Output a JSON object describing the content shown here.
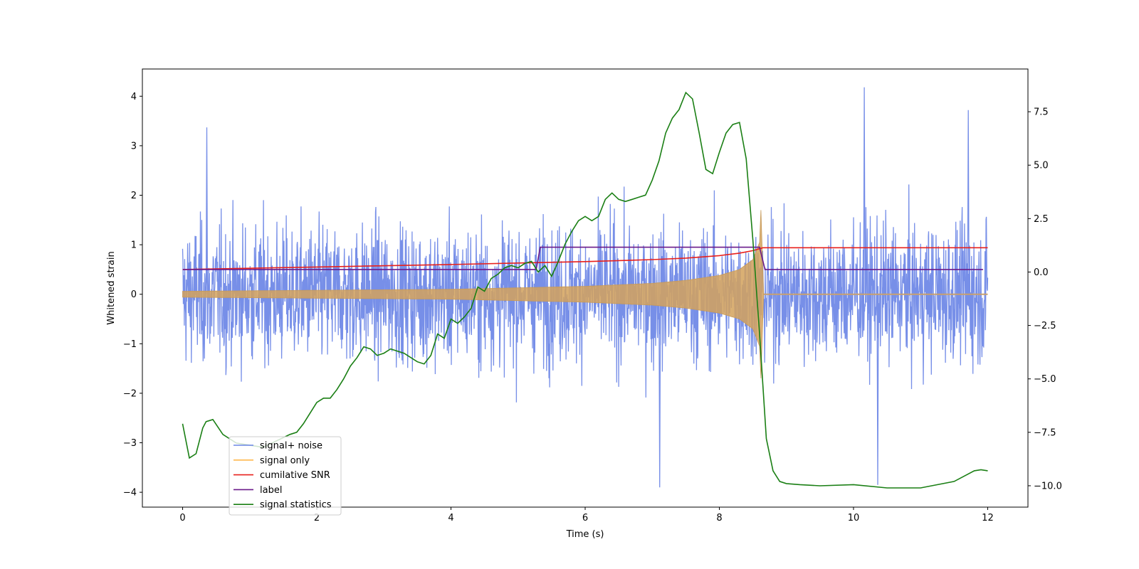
{
  "chart_data": {
    "type": "line",
    "xlabel": "Time (s)",
    "ylabel": "Whitened strain",
    "xlim": [
      -0.6,
      12.6
    ],
    "ylim": [
      -4.3,
      4.55
    ],
    "y2lim": [
      -11.0,
      9.5
    ],
    "xticks": [
      0,
      2,
      4,
      6,
      8,
      10,
      12
    ],
    "yticks": [
      -4,
      -3,
      -2,
      -1,
      0,
      1,
      2,
      3,
      4
    ],
    "y2ticks": [
      -10.0,
      -7.5,
      -5.0,
      -2.5,
      0.0,
      2.5,
      5.0,
      7.5
    ],
    "legend_position": "lower-left",
    "series": [
      {
        "name": "signal+ noise",
        "color": "#6b86e6",
        "axis": "left",
        "description": "noisy whitened strain, roughly ±2 with spikes to about ±3.5, sampled 0–12 s",
        "x_range": [
          0,
          12
        ],
        "peaks": [
          {
            "x": 0.35,
            "y": 3.37
          },
          {
            "x": 10.15,
            "y": 4.18
          },
          {
            "x": 11.7,
            "y": 3.72
          },
          {
            "x": 7.1,
            "y": -3.9
          },
          {
            "x": 10.35,
            "y": -3.85
          }
        ]
      },
      {
        "name": "signal only",
        "color": "#ffb84d",
        "axis": "left",
        "description": "chirp with amplitude growing from ~0.06 at t=0 to ~1.7 at t≈8.62 s, ~0 afterwards",
        "envelope": {
          "x": [
            0,
            2,
            4,
            6,
            7,
            7.5,
            8,
            8.3,
            8.5,
            8.6,
            8.62,
            8.66,
            12
          ],
          "y": [
            0.06,
            0.08,
            0.1,
            0.16,
            0.22,
            0.28,
            0.38,
            0.5,
            0.7,
            1.05,
            1.7,
            0.0,
            0.0
          ]
        }
      },
      {
        "name": "cumilative SNR",
        "color": "#e8201c",
        "axis": "left",
        "x": [
          0,
          2,
          4,
          5,
          6,
          7,
          7.5,
          8,
          8.3,
          8.5,
          8.6,
          8.65,
          12
        ],
        "y": [
          0.5,
          0.55,
          0.6,
          0.63,
          0.66,
          0.7,
          0.73,
          0.78,
          0.83,
          0.88,
          0.92,
          0.94,
          0.94
        ]
      },
      {
        "name": "label",
        "color": "#6a1a8a",
        "axis": "left",
        "x": [
          0,
          5.27,
          5.33,
          8.6,
          8.68,
          11.93
        ],
        "y": [
          0.5,
          0.5,
          0.95,
          0.95,
          0.5,
          0.5
        ]
      },
      {
        "name": "signal statistics",
        "color": "#1a7f14",
        "axis": "right",
        "x": [
          0,
          0.1,
          0.2,
          0.3,
          0.35,
          0.45,
          0.6,
          0.8,
          1.0,
          1.2,
          1.4,
          1.6,
          1.7,
          1.8,
          1.9,
          2.0,
          2.1,
          2.2,
          2.3,
          2.4,
          2.5,
          2.6,
          2.7,
          2.8,
          2.9,
          3.0,
          3.1,
          3.2,
          3.3,
          3.4,
          3.5,
          3.6,
          3.7,
          3.8,
          3.9,
          4.0,
          4.1,
          4.2,
          4.3,
          4.4,
          4.5,
          4.6,
          4.7,
          4.8,
          4.9,
          5.0,
          5.1,
          5.2,
          5.3,
          5.4,
          5.5,
          5.6,
          5.7,
          5.8,
          5.9,
          6.0,
          6.1,
          6.2,
          6.3,
          6.4,
          6.5,
          6.6,
          6.7,
          6.8,
          6.9,
          7.0,
          7.1,
          7.2,
          7.3,
          7.4,
          7.5,
          7.6,
          7.7,
          7.8,
          7.9,
          8.0,
          8.1,
          8.2,
          8.3,
          8.4,
          8.5,
          8.6,
          8.7,
          8.8,
          8.9,
          9.0,
          9.2,
          9.5,
          10.0,
          10.5,
          11.0,
          11.5,
          11.8,
          11.9,
          12.0
        ],
        "y": [
          -7.1,
          -8.7,
          -8.5,
          -7.3,
          -7.0,
          -6.9,
          -7.6,
          -8.0,
          -8.1,
          -8.2,
          -7.9,
          -7.6,
          -7.5,
          -7.1,
          -6.6,
          -6.1,
          -5.9,
          -5.9,
          -5.5,
          -5.0,
          -4.4,
          -4.0,
          -3.5,
          -3.6,
          -3.9,
          -3.8,
          -3.6,
          -3.7,
          -3.8,
          -4.0,
          -4.2,
          -4.3,
          -3.9,
          -2.9,
          -3.1,
          -2.2,
          -2.4,
          -2.1,
          -1.7,
          -0.7,
          -0.9,
          -0.3,
          -0.1,
          0.2,
          0.3,
          0.2,
          0.4,
          0.5,
          0.0,
          0.3,
          -0.2,
          0.5,
          1.3,
          1.9,
          2.4,
          2.6,
          2.4,
          2.6,
          3.4,
          3.7,
          3.4,
          3.3,
          3.4,
          3.5,
          3.6,
          4.3,
          5.2,
          6.5,
          7.2,
          7.6,
          8.4,
          8.1,
          6.5,
          4.8,
          4.6,
          5.6,
          6.5,
          6.9,
          7.0,
          5.3,
          1.5,
          -2.9,
          -7.8,
          -9.3,
          -9.8,
          -9.9,
          -9.95,
          -10.0,
          -9.95,
          -10.1,
          -10.1,
          -9.8,
          -9.3,
          -9.25,
          -9.3
        ]
      }
    ]
  }
}
